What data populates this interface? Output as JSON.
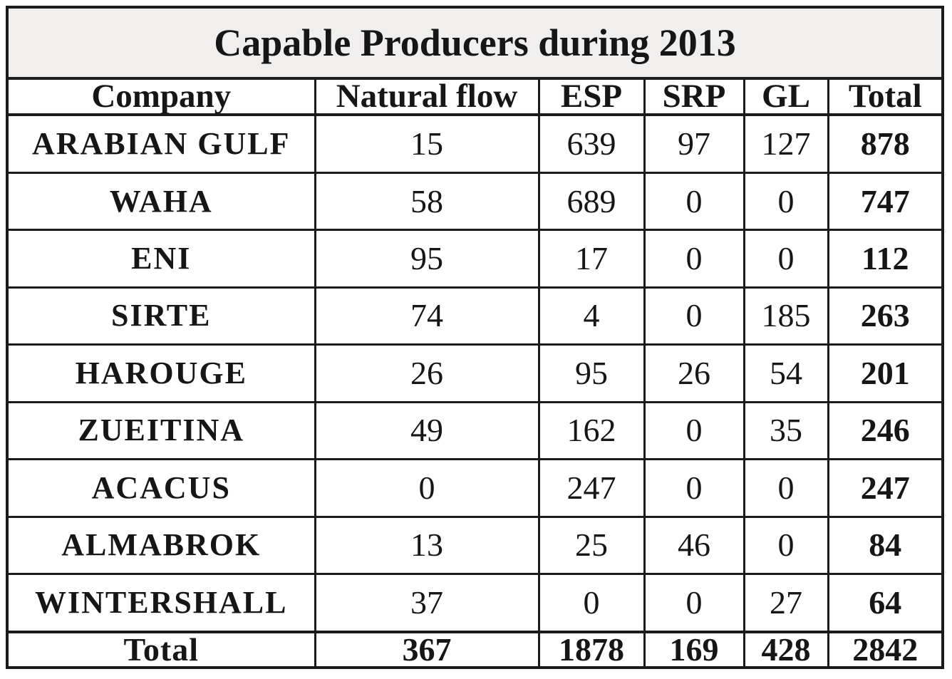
{
  "title": "Capable Producers during 2013",
  "columns": [
    "Company",
    "Natural flow",
    "ESP",
    "SRP",
    "GL",
    "Total"
  ],
  "rows": [
    [
      "ARABIAN GULF",
      15,
      639,
      97,
      127,
      878
    ],
    [
      "WAHA",
      58,
      689,
      0,
      0,
      747
    ],
    [
      "ENI",
      95,
      17,
      0,
      0,
      112
    ],
    [
      "SIRTE",
      74,
      4,
      0,
      185,
      263
    ],
    [
      "HAROUGE",
      26,
      95,
      26,
      54,
      201
    ],
    [
      "ZUEITINA",
      49,
      162,
      0,
      35,
      246
    ],
    [
      "ACACUS",
      0,
      247,
      0,
      0,
      247
    ],
    [
      "ALMABROK",
      13,
      25,
      46,
      0,
      84
    ],
    [
      "WINTERSHALL",
      37,
      0,
      0,
      27,
      64
    ]
  ],
  "footer": [
    "Total",
    367,
    1878,
    169,
    428,
    2842
  ],
  "colors": {
    "title_background": "#f0efee",
    "border": "#1b1b1b",
    "text": "#161616",
    "cell_background": "#ffffff"
  },
  "chart_data": {
    "type": "table",
    "title": "Capable Producers during 2013",
    "columns": [
      "Company",
      "Natural flow",
      "ESP",
      "SRP",
      "GL",
      "Total"
    ],
    "rows": [
      {
        "company": "ARABIAN GULF",
        "natural_flow": 15,
        "esp": 639,
        "srp": 97,
        "gl": 127,
        "total": 878
      },
      {
        "company": "WAHA",
        "natural_flow": 58,
        "esp": 689,
        "srp": 0,
        "gl": 0,
        "total": 747
      },
      {
        "company": "ENI",
        "natural_flow": 95,
        "esp": 17,
        "srp": 0,
        "gl": 0,
        "total": 112
      },
      {
        "company": "SIRTE",
        "natural_flow": 74,
        "esp": 4,
        "srp": 0,
        "gl": 185,
        "total": 263
      },
      {
        "company": "HAROUGE",
        "natural_flow": 26,
        "esp": 95,
        "srp": 26,
        "gl": 54,
        "total": 201
      },
      {
        "company": "ZUEITINA",
        "natural_flow": 49,
        "esp": 162,
        "srp": 0,
        "gl": 35,
        "total": 246
      },
      {
        "company": "ACACUS",
        "natural_flow": 0,
        "esp": 247,
        "srp": 0,
        "gl": 0,
        "total": 247
      },
      {
        "company": "ALMABROK",
        "natural_flow": 13,
        "esp": 25,
        "srp": 46,
        "gl": 0,
        "total": 84
      },
      {
        "company": "WINTERSHALL",
        "natural_flow": 37,
        "esp": 0,
        "srp": 0,
        "gl": 27,
        "total": 64
      }
    ],
    "totals_row": {
      "company": "Total",
      "natural_flow": 367,
      "esp": 1878,
      "srp": 169,
      "gl": 428,
      "total": 2842
    }
  }
}
